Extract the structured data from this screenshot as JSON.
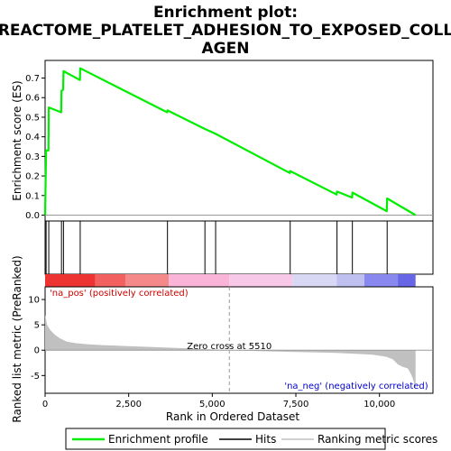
{
  "chart_data": {
    "type": "line",
    "title_line1": "Enrichment plot:",
    "title_line2": "REACTOME_PLATELET_ADHESION_TO_EXPOSED_COLL",
    "title_line3": "AGEN",
    "es_panel": {
      "ylabel": "Enrichment score (ES)",
      "ylim": [
        -0.03,
        0.79
      ],
      "yticks": [
        0.0,
        0.1,
        0.2,
        0.3,
        0.4,
        0.5,
        0.6,
        0.7
      ],
      "ytick_labels": [
        "0.0",
        "0.1",
        "0.2",
        "0.3",
        "0.4",
        "0.5",
        "0.6",
        "0.7"
      ],
      "series_name": "Enrichment profile",
      "color": "#00ee00",
      "points": [
        [
          0,
          0.0
        ],
        [
          30,
          0.33
        ],
        [
          100,
          0.33
        ],
        [
          110,
          0.55
        ],
        [
          480,
          0.525
        ],
        [
          490,
          0.635
        ],
        [
          540,
          0.64
        ],
        [
          550,
          0.735
        ],
        [
          1040,
          0.69
        ],
        [
          1050,
          0.75
        ],
        [
          3650,
          0.525
        ],
        [
          3660,
          0.535
        ],
        [
          4780,
          0.44
        ],
        [
          5100,
          0.415
        ],
        [
          7320,
          0.215
        ],
        [
          7330,
          0.225
        ],
        [
          8720,
          0.105
        ],
        [
          8730,
          0.12
        ],
        [
          9180,
          0.09
        ],
        [
          9190,
          0.115
        ],
        [
          10220,
          0.02
        ],
        [
          10230,
          0.085
        ],
        [
          11080,
          0.0
        ]
      ]
    },
    "hits": [
      30,
      110,
      490,
      550,
      1050,
      3660,
      4780,
      5100,
      7330,
      8730,
      9190,
      10230
    ],
    "heat_colors": [
      "#ee3333",
      "#f26060",
      "#f58888",
      "#f9b4d8",
      "#f8c8e8",
      "#d8d8f4",
      "#c0c0f0",
      "#8888ee",
      "#6666e6",
      "#3a1ad8"
    ],
    "heat_stops": [
      0,
      1500,
      2400,
      3700,
      5510,
      7400,
      8720,
      9550,
      10550,
      11080
    ],
    "metric_panel": {
      "ylabel": "Ranked list metric (PreRanked)",
      "ylim": [
        -8.5,
        12.5
      ],
      "yticks": [
        -5,
        0,
        5,
        10
      ],
      "ytick_labels": [
        "-5",
        "0",
        "5",
        "10"
      ],
      "series_name": "Ranking metric scores",
      "color": "#c0c0c0",
      "points": [
        [
          0,
          7.0
        ],
        [
          60,
          5.0
        ],
        [
          150,
          4.0
        ],
        [
          300,
          3.0
        ],
        [
          450,
          2.3
        ],
        [
          650,
          1.7
        ],
        [
          900,
          1.4
        ],
        [
          1200,
          1.2
        ],
        [
          1700,
          1.0
        ],
        [
          2500,
          0.8
        ],
        [
          3500,
          0.55
        ],
        [
          4500,
          0.3
        ],
        [
          5510,
          0.0
        ],
        [
          6500,
          -0.2
        ],
        [
          7500,
          -0.35
        ],
        [
          8500,
          -0.5
        ],
        [
          9300,
          -0.7
        ],
        [
          9800,
          -0.9
        ],
        [
          10200,
          -1.3
        ],
        [
          10400,
          -1.8
        ],
        [
          10550,
          -2.8
        ],
        [
          10700,
          -3.3
        ],
        [
          10850,
          -3.6
        ],
        [
          10950,
          -4.8
        ],
        [
          11020,
          -6.0
        ],
        [
          11080,
          -7.8
        ]
      ],
      "zero_cross_label": "Zero cross at 5510",
      "zero_cross": 5510,
      "pos_label": "'na_pos' (positively correlated)",
      "neg_label": "'na_neg' (negatively correlated)",
      "pos_color": "#cc0000",
      "neg_color": "#0000cc"
    },
    "xaxis": {
      "xlabel": "Rank in Ordered Dataset",
      "xlim": [
        0,
        11600
      ],
      "xticks": [
        0,
        2500,
        5000,
        7500,
        10000
      ],
      "xtick_labels": [
        "0",
        "2,500",
        "5,000",
        "7,500",
        "10,000"
      ]
    },
    "legend": {
      "placement": "bottom",
      "items": [
        {
          "label": "Enrichment profile",
          "color": "#00ee00"
        },
        {
          "label": "Hits",
          "color": "#000000"
        },
        {
          "label": "Ranking metric scores",
          "color": "#c0c0c0"
        }
      ]
    }
  }
}
